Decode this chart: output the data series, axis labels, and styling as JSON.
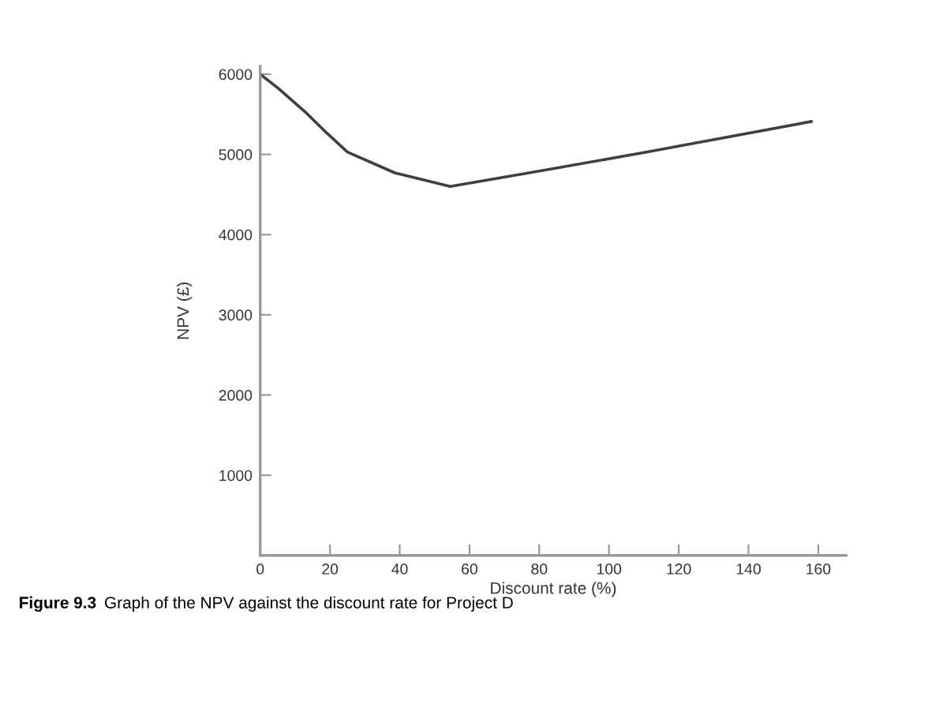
{
  "chart_data": {
    "type": "line",
    "xlabel": "Discount rate (%)",
    "ylabel": "NPV (£)",
    "x": [
      0,
      5.3,
      12.9,
      19,
      25,
      38.6,
      54.5,
      81,
      111,
      158
    ],
    "series": [
      {
        "color": "#404040",
        "values": [
          6000,
          5820,
          5530,
          5270,
          5030,
          4770,
          4600,
          4800,
          5030,
          5410
        ]
      }
    ],
    "xlim": [
      0,
      168
    ],
    "ylim": [
      0,
      6100
    ],
    "xticks": [
      0,
      20,
      40,
      60,
      80,
      100,
      120,
      140,
      160
    ],
    "yticks": [
      1000,
      2000,
      3000,
      4000,
      5000,
      6000
    ],
    "grid": false,
    "legend": false,
    "marker": "none",
    "line_style": "solid",
    "annotations": [
      "Figure 9.3",
      "Graph of the NPV against the discount rate for Project D"
    ]
  }
}
